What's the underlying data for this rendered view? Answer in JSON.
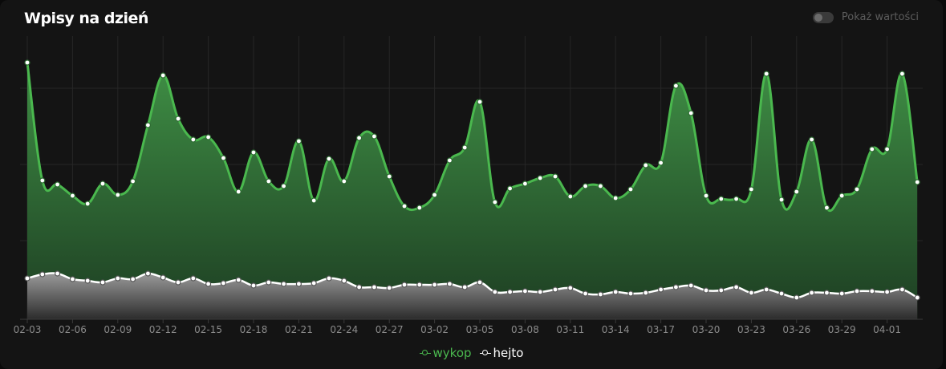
{
  "card": {
    "title": "Wpisy na dzień"
  },
  "toggle": {
    "label": "Pokaż wartości",
    "checked": false
  },
  "chart_data": {
    "type": "area",
    "title": "Wpisy na dzień",
    "grid": true,
    "legend_position": "bottom-center",
    "x_ticks": [
      "02-03",
      "02-06",
      "02-09",
      "02-12",
      "02-15",
      "02-18",
      "02-21",
      "02-24",
      "02-27",
      "03-02",
      "03-05",
      "03-08",
      "03-11",
      "03-14",
      "03-17",
      "03-20",
      "03-23",
      "03-26",
      "03-29",
      "04-01"
    ],
    "x": [
      "02-03",
      "02-04",
      "02-05",
      "02-06",
      "02-07",
      "02-08",
      "02-09",
      "02-10",
      "02-11",
      "02-12",
      "02-13",
      "02-14",
      "02-15",
      "02-16",
      "02-17",
      "02-18",
      "02-19",
      "02-20",
      "02-21",
      "02-22",
      "02-23",
      "02-24",
      "02-25",
      "02-26",
      "02-27",
      "02-28",
      "03-01",
      "03-02",
      "03-03",
      "03-04",
      "03-05",
      "03-06",
      "03-07",
      "03-08",
      "03-09",
      "03-10",
      "03-11",
      "03-12",
      "03-13",
      "03-14",
      "03-15",
      "03-16",
      "03-17",
      "03-18",
      "03-19",
      "03-20",
      "03-21",
      "03-22",
      "03-23",
      "03-24",
      "03-25",
      "03-26",
      "03-27",
      "03-28",
      "03-29",
      "03-30",
      "03-31",
      "04-01",
      "04-02",
      "04-03"
    ],
    "ylim": [
      0,
      332
    ],
    "series": [
      {
        "name": "wykop",
        "color": "#4ab84e",
        "values": [
          320,
          173,
          168,
          154,
          144,
          169,
          155,
          172,
          242,
          304,
          250,
          224,
          227,
          201,
          159,
          208,
          172,
          166,
          222,
          148,
          200,
          172,
          226,
          228,
          178,
          141,
          139,
          155,
          198,
          214,
          271,
          146,
          163,
          169,
          176,
          178,
          153,
          166,
          166,
          151,
          162,
          192,
          195,
          291,
          257,
          154,
          150,
          150,
          162,
          306,
          149,
          159,
          224,
          139,
          154,
          162,
          212,
          212,
          306,
          171
        ]
      },
      {
        "name": "hejto",
        "color": "#ffffff",
        "values": [
          51,
          56,
          57,
          50,
          48,
          46,
          51,
          50,
          57,
          52,
          46,
          51,
          44,
          45,
          49,
          42,
          46,
          44,
          44,
          45,
          51,
          48,
          40,
          40,
          39,
          43,
          43,
          43,
          44,
          40,
          46,
          34,
          34,
          35,
          34,
          37,
          39,
          32,
          31,
          34,
          32,
          33,
          37,
          40,
          42,
          36,
          36,
          40,
          33,
          37,
          32,
          27,
          33,
          33,
          32,
          35,
          35,
          34,
          37,
          27
        ]
      }
    ]
  },
  "legend": {
    "items": [
      {
        "label": "wykop",
        "color": "#4ab84e"
      },
      {
        "label": "hejto",
        "color": "#ffffff"
      }
    ]
  }
}
